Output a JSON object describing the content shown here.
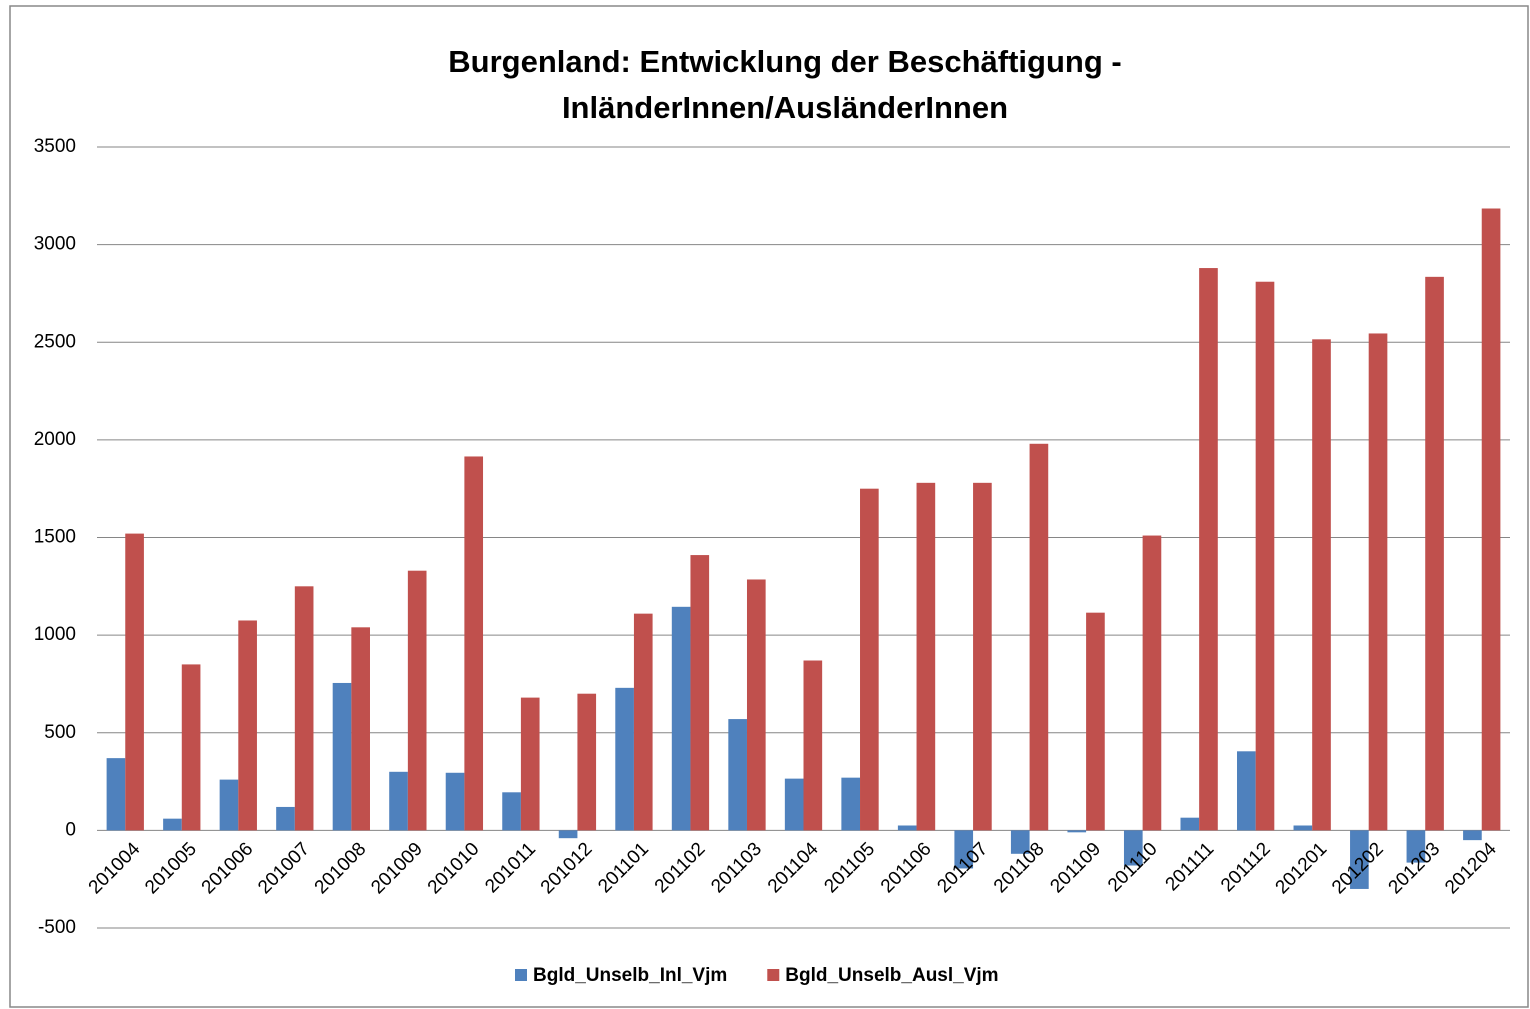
{
  "chart_data": {
    "type": "bar",
    "title": [
      "Burgenland: Entwicklung der Beschäftigung -",
      "InländerInnen/AusländerInnen"
    ],
    "categories": [
      "201004",
      "201005",
      "201006",
      "201007",
      "201008",
      "201009",
      "201010",
      "201011",
      "201012",
      "201101",
      "201102",
      "201103",
      "201104",
      "201105",
      "201106",
      "201107",
      "201108",
      "201109",
      "201110",
      "201111",
      "201112",
      "201201",
      "201202",
      "201203",
      "201204"
    ],
    "series": [
      {
        "name": "Bgld_Unselb_Inl_Vjm",
        "color": "#4f81bd",
        "values": [
          370,
          60,
          260,
          120,
          755,
          300,
          295,
          195,
          -40,
          730,
          1145,
          570,
          265,
          270,
          25,
          -195,
          -120,
          -10,
          -180,
          65,
          405,
          25,
          -300,
          -165,
          -50
        ]
      },
      {
        "name": "Bgld_Unselb_Ausl_Vjm",
        "color": "#c0504d",
        "values": [
          1520,
          850,
          1075,
          1250,
          1040,
          1330,
          1915,
          680,
          700,
          1110,
          1410,
          1285,
          870,
          1750,
          1780,
          1780,
          1980,
          1115,
          1510,
          2880,
          2810,
          2515,
          2545,
          2835,
          3185
        ]
      }
    ],
    "ylim": [
      -500,
      3500
    ],
    "yticks": [
      -500,
      0,
      500,
      1000,
      1500,
      2000,
      2500,
      3000,
      3500
    ],
    "grid": true,
    "legend": "bottom"
  }
}
